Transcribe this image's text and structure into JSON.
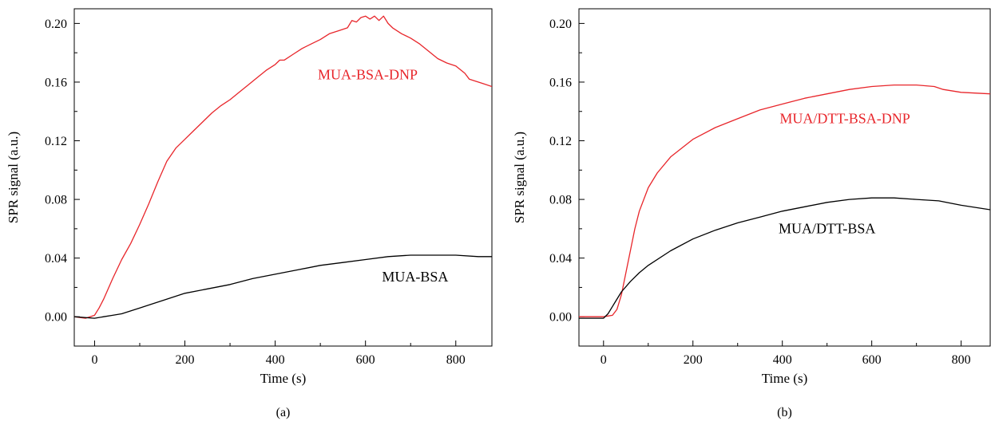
{
  "chart_data": [
    {
      "type": "line",
      "panel_label": "(a)",
      "xlabel": "Time (s)",
      "ylabel": "SPR signal (a.u.)",
      "xlim": [
        -45,
        880
      ],
      "ylim": [
        -0.02,
        0.21
      ],
      "xticks": [
        0,
        200,
        400,
        600,
        800
      ],
      "yticks": [
        0.0,
        0.04,
        0.08,
        0.12,
        0.16,
        0.2
      ],
      "grid": false,
      "series": [
        {
          "color": "#e8262b",
          "annotation": "MUA-BSA-DNP",
          "annotation_at": [
            605,
            0.162
          ],
          "x": [
            -45,
            -20,
            0,
            10,
            20,
            40,
            60,
            80,
            100,
            120,
            140,
            160,
            180,
            200,
            220,
            240,
            260,
            280,
            300,
            320,
            340,
            360,
            380,
            400,
            410,
            420,
            440,
            460,
            480,
            500,
            520,
            540,
            560,
            570,
            580,
            590,
            600,
            610,
            620,
            630,
            640,
            650,
            660,
            680,
            700,
            720,
            740,
            760,
            780,
            800,
            820,
            830,
            840,
            860,
            880
          ],
          "y": [
            0.0,
            -0.001,
            0.001,
            0.006,
            0.012,
            0.026,
            0.039,
            0.05,
            0.063,
            0.077,
            0.092,
            0.106,
            0.115,
            0.121,
            0.127,
            0.133,
            0.139,
            0.144,
            0.148,
            0.153,
            0.158,
            0.163,
            0.168,
            0.172,
            0.175,
            0.175,
            0.179,
            0.183,
            0.186,
            0.189,
            0.193,
            0.195,
            0.197,
            0.202,
            0.201,
            0.204,
            0.205,
            0.203,
            0.205,
            0.202,
            0.205,
            0.2,
            0.197,
            0.193,
            0.19,
            0.186,
            0.181,
            0.176,
            0.173,
            0.171,
            0.166,
            0.162,
            0.161,
            0.159,
            0.157
          ]
        },
        {
          "color": "#000000",
          "annotation": "MUA-BSA",
          "annotation_at": [
            710,
            0.024
          ],
          "x": [
            -45,
            0,
            20,
            40,
            60,
            80,
            100,
            150,
            200,
            250,
            300,
            350,
            400,
            450,
            500,
            550,
            600,
            650,
            700,
            750,
            800,
            850,
            880
          ],
          "y": [
            0.0,
            -0.001,
            0.0,
            0.001,
            0.002,
            0.004,
            0.006,
            0.011,
            0.016,
            0.019,
            0.022,
            0.026,
            0.029,
            0.032,
            0.035,
            0.037,
            0.039,
            0.041,
            0.042,
            0.042,
            0.042,
            0.041,
            0.041
          ]
        }
      ]
    },
    {
      "type": "line",
      "panel_label": "(b)",
      "xlabel": "Time (s)",
      "ylabel": "SPR signal (a.u.)",
      "xlim": [
        -55,
        865
      ],
      "ylim": [
        -0.02,
        0.21
      ],
      "xticks": [
        0,
        200,
        400,
        600,
        800
      ],
      "yticks": [
        0.0,
        0.04,
        0.08,
        0.12,
        0.16,
        0.2
      ],
      "grid": false,
      "series": [
        {
          "color": "#e8262b",
          "annotation": "MUA/DTT-BSA-DNP",
          "annotation_at": [
            540,
            0.132
          ],
          "x": [
            -55,
            0,
            20,
            30,
            40,
            50,
            60,
            70,
            80,
            100,
            120,
            150,
            200,
            250,
            300,
            350,
            400,
            450,
            500,
            550,
            600,
            650,
            700,
            740,
            760,
            800,
            865
          ],
          "y": [
            0.0,
            0.0,
            0.001,
            0.005,
            0.015,
            0.03,
            0.045,
            0.06,
            0.072,
            0.088,
            0.098,
            0.109,
            0.121,
            0.129,
            0.135,
            0.141,
            0.145,
            0.149,
            0.152,
            0.155,
            0.157,
            0.158,
            0.158,
            0.157,
            0.155,
            0.153,
            0.152
          ]
        },
        {
          "color": "#000000",
          "annotation": "MUA/DTT-BSA",
          "annotation_at": [
            500,
            0.057
          ],
          "x": [
            -55,
            0,
            10,
            20,
            30,
            40,
            60,
            80,
            100,
            150,
            200,
            250,
            300,
            350,
            400,
            450,
            500,
            550,
            600,
            650,
            700,
            750,
            800,
            865
          ],
          "y": [
            -0.001,
            -0.001,
            0.002,
            0.007,
            0.012,
            0.017,
            0.024,
            0.03,
            0.035,
            0.045,
            0.053,
            0.059,
            0.064,
            0.068,
            0.072,
            0.075,
            0.078,
            0.08,
            0.081,
            0.081,
            0.08,
            0.079,
            0.076,
            0.073
          ]
        }
      ]
    }
  ]
}
